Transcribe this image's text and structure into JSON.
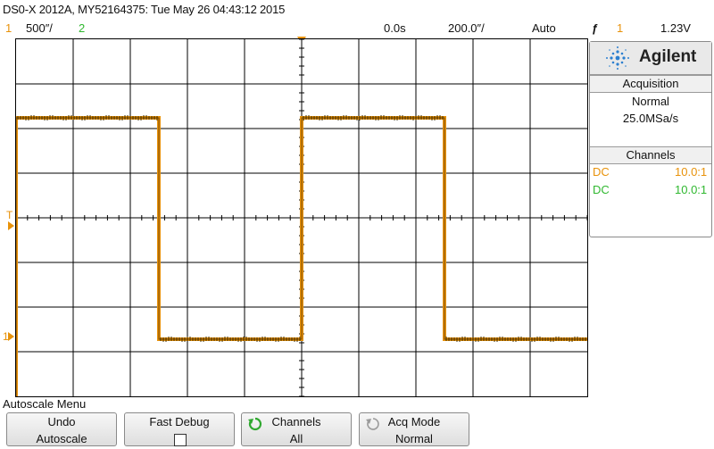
{
  "header": {
    "title": "DS0-X 2012A, MY52164375: Tue May 26 04:43:12 2015"
  },
  "status": {
    "ch1_num": "1",
    "ch1_scale": "500&#x2f;",
    "ch1_scale_text": "500″/",
    "ch2_num": "2",
    "time_delay": "0.0s",
    "time_scale": "200.0″/",
    "trigger_mode": "Auto",
    "trigger_slope_symbol": "ƒ",
    "trigger_channel": "1",
    "trigger_level": "1.23V"
  },
  "panel": {
    "brand": "Agilent",
    "acquisition": {
      "heading": "Acquisition",
      "mode": "Normal",
      "rate": "25.0MSa/s"
    },
    "channels": {
      "heading": "Channels",
      "rows": [
        {
          "coupling": "DC",
          "probe": "10.0:1",
          "color": "#e8920a"
        },
        {
          "coupling": "DC",
          "probe": "10.0:1",
          "color": "#2fb82f"
        }
      ]
    }
  },
  "markers": {
    "trigger_level_marker": "T",
    "ch1_ground_marker": "1"
  },
  "menu": {
    "title": "Autoscale Menu",
    "softkeys": [
      {
        "line1": "Undo",
        "line2": "Autoscale"
      },
      {
        "line1": "Fast Debug",
        "line2": ""
      },
      {
        "line1": "Channels",
        "line2": "All"
      },
      {
        "line1": "Acq Mode",
        "line2": "Normal"
      }
    ]
  },
  "colors": {
    "ch1": "#e8920a",
    "ch2": "#2fb82f",
    "grid": "#000000"
  }
}
